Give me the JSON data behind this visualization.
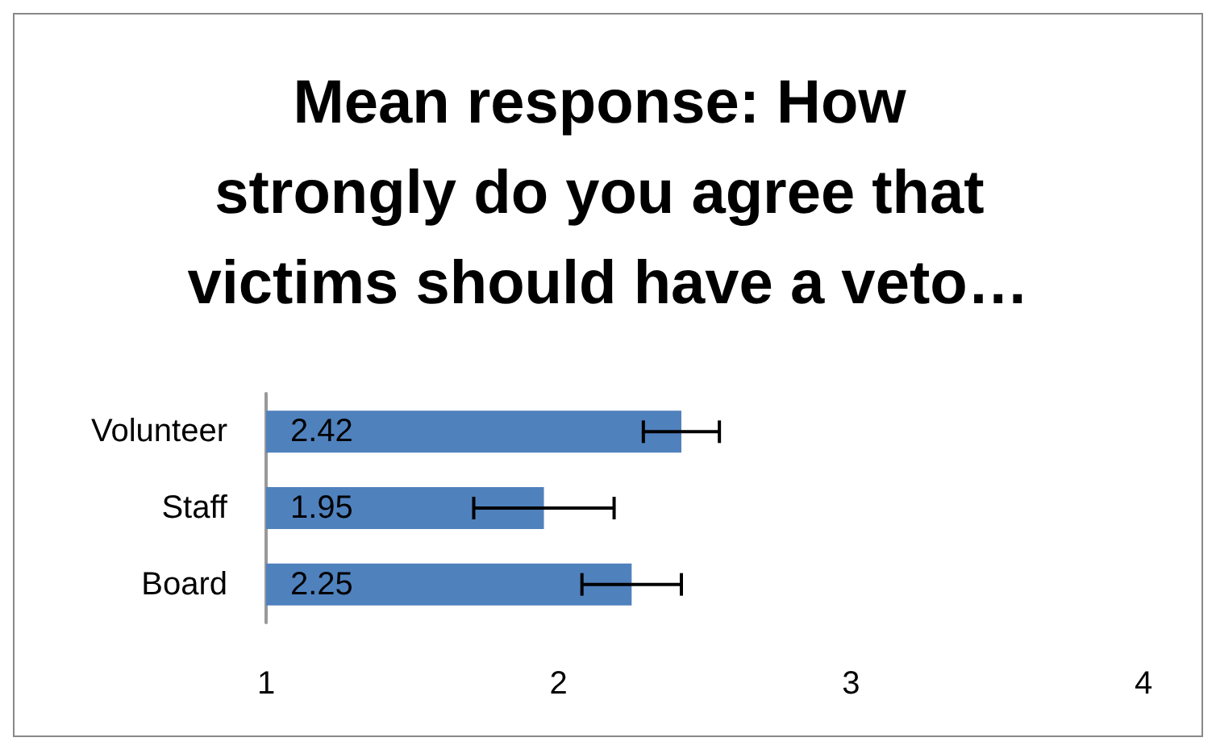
{
  "chart_data": {
    "type": "bar",
    "orientation": "horizontal",
    "title": "Mean response: How strongly do you agree that victims should have a veto…",
    "categories": [
      "Volunteer",
      "Staff",
      "Board"
    ],
    "values": [
      2.42,
      1.95,
      2.25
    ],
    "errors": [
      0.13,
      0.24,
      0.17
    ],
    "color": "#4f81bd",
    "data_labels": true,
    "grid": false,
    "xlim": [
      1,
      4
    ],
    "xticks": [
      1,
      2,
      3,
      4
    ]
  }
}
